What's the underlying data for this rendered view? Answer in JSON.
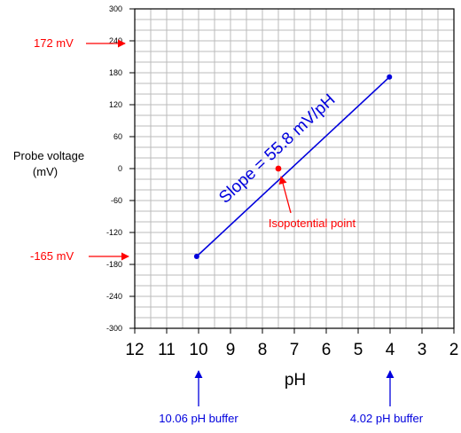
{
  "chart_data": {
    "type": "line",
    "xlabel": "pH",
    "ylabel": [
      "Probe voltage",
      "(mV)"
    ],
    "xlim": [
      12,
      2
    ],
    "ylim": [
      -300,
      300
    ],
    "x_ticks": [
      12,
      11,
      10,
      9,
      8,
      7,
      6,
      5,
      4,
      3,
      2
    ],
    "y_ticks": [
      300,
      240,
      180,
      120,
      60,
      0,
      -60,
      -120,
      -180,
      -240,
      -300
    ],
    "grid": true,
    "series": [
      {
        "color": "#0000dd",
        "x": [
          10.06,
          4.02
        ],
        "y": [
          -165,
          172
        ]
      }
    ],
    "isopotential_point": {
      "x": 7.5,
      "y": 0,
      "color": "#ff0000"
    },
    "annotations": {
      "slope": "Slope = 55.8 mV/pH",
      "isopotential": "Isopotential point",
      "high_voltage": "172 mV",
      "low_voltage": "-165 mV",
      "buffer_low": "10.06 pH buffer",
      "buffer_high": "4.02 pH buffer"
    }
  },
  "colors": {
    "line": "#0000dd",
    "annotation_red": "#ff0000",
    "grid": "#bbbbbb"
  }
}
